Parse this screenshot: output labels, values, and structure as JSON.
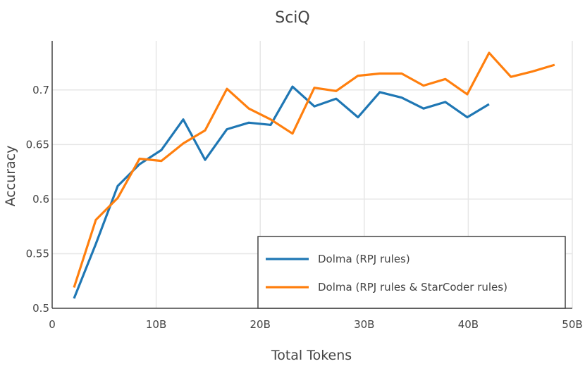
{
  "chart_data": {
    "type": "line",
    "title": "SciQ",
    "xlabel": "Total Tokens",
    "ylabel": "Accuracy",
    "xlim": [
      0,
      50
    ],
    "ylim": [
      0.5,
      0.745
    ],
    "xticks": [
      0,
      10,
      20,
      30,
      40,
      50
    ],
    "xtick_labels": [
      "0",
      "10B",
      "20B",
      "30B",
      "40B",
      "50B"
    ],
    "yticks": [
      0.5,
      0.55,
      0.6,
      0.65,
      0.7
    ],
    "ytick_labels": [
      "0.5",
      "0.55",
      "0.6",
      "0.65",
      "0.7"
    ],
    "grid": true,
    "legend_position": "bottom-right",
    "series": [
      {
        "name": "Dolma (RPJ rules)",
        "color": "#1f77b4",
        "x": [
          2.1,
          4.2,
          6.3,
          8.4,
          10.5,
          12.6,
          14.7,
          16.8,
          18.9,
          21.0,
          23.1,
          25.2,
          27.3,
          29.4,
          31.5,
          33.6,
          35.7,
          37.8,
          39.9,
          42.0
        ],
        "y": [
          0.509,
          0.559,
          0.612,
          0.632,
          0.645,
          0.673,
          0.636,
          0.664,
          0.67,
          0.668,
          0.703,
          0.685,
          0.692,
          0.675,
          0.698,
          0.693,
          0.683,
          0.689,
          0.675,
          0.687
        ]
      },
      {
        "name": "Dolma (RPJ rules & StarCoder rules)",
        "color": "#ff7f0e",
        "x": [
          2.1,
          4.2,
          6.3,
          8.4,
          10.5,
          12.6,
          14.7,
          16.8,
          18.9,
          21.0,
          23.1,
          25.2,
          27.3,
          29.4,
          31.5,
          33.6,
          35.7,
          37.8,
          39.9,
          42.0,
          44.1,
          46.2,
          48.3
        ],
        "y": [
          0.519,
          0.581,
          0.601,
          0.637,
          0.635,
          0.651,
          0.663,
          0.701,
          0.683,
          0.673,
          0.66,
          0.702,
          0.699,
          0.713,
          0.715,
          0.715,
          0.704,
          0.71,
          0.696,
          0.734,
          0.712,
          0.717,
          0.723
        ]
      }
    ]
  }
}
